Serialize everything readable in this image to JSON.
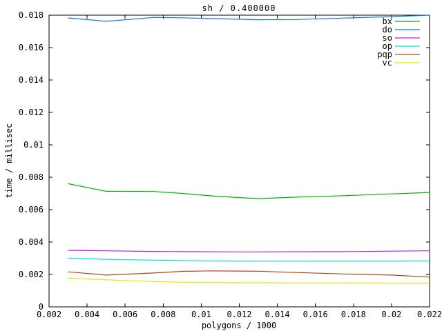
{
  "window": {
    "background": "#ffffff",
    "axis_color": "#000000",
    "text_color": "#000000"
  },
  "chart_data": {
    "type": "line",
    "title": "sh / 0.400000",
    "xlabel": "polygons / 1000",
    "ylabel": "time / millisec",
    "xlim": [
      0.002,
      0.022
    ],
    "ylim": [
      0,
      0.018
    ],
    "grid": false,
    "legend_position": "top-right-inside",
    "axis_color": "#000000",
    "xticks": [
      {
        "v": 0.002,
        "label": "0.002"
      },
      {
        "v": 0.004,
        "label": "0.004"
      },
      {
        "v": 0.006,
        "label": "0.006"
      },
      {
        "v": 0.008,
        "label": "0.008"
      },
      {
        "v": 0.01,
        "label": "0.01"
      },
      {
        "v": 0.012,
        "label": "0.012"
      },
      {
        "v": 0.014,
        "label": "0.014"
      },
      {
        "v": 0.016,
        "label": "0.016"
      },
      {
        "v": 0.018,
        "label": "0.018"
      },
      {
        "v": 0.02,
        "label": "0.02"
      },
      {
        "v": 0.022,
        "label": "0.022"
      }
    ],
    "yticks": [
      {
        "v": 0,
        "label": "0"
      },
      {
        "v": 0.002,
        "label": "0.002"
      },
      {
        "v": 0.004,
        "label": "0.004"
      },
      {
        "v": 0.006,
        "label": "0.006"
      },
      {
        "v": 0.008,
        "label": "0.008"
      },
      {
        "v": 0.01,
        "label": "0.01"
      },
      {
        "v": 0.012,
        "label": "0.012"
      },
      {
        "v": 0.014,
        "label": "0.014"
      },
      {
        "v": 0.016,
        "label": "0.016"
      },
      {
        "v": 0.018,
        "label": "0.018"
      }
    ],
    "x": [
      0.003,
      0.005,
      0.0075,
      0.009,
      0.0105,
      0.012,
      0.013,
      0.015,
      0.0175,
      0.02,
      0.022
    ],
    "series": [
      {
        "name": "bx",
        "color": "#00b400",
        "values": [
          0.0076,
          0.00713,
          0.00712,
          0.007,
          0.00685,
          0.00674,
          0.00668,
          0.00677,
          0.00686,
          0.00697,
          0.00706
        ]
      },
      {
        "name": "do",
        "color": "#0a78e6",
        "values": [
          0.01783,
          0.01762,
          0.01786,
          0.01784,
          0.01779,
          0.01775,
          0.01772,
          0.01773,
          0.01782,
          0.01791,
          0.018
        ]
      },
      {
        "name": "so",
        "color": "#c31ee0",
        "values": [
          0.00349,
          0.00346,
          0.00342,
          0.00341,
          0.0034,
          0.00339,
          0.00339,
          0.0034,
          0.00341,
          0.00344,
          0.00346
        ]
      },
      {
        "name": "op",
        "color": "#00e0e0",
        "values": [
          0.00301,
          0.00293,
          0.00288,
          0.00286,
          0.00284,
          0.00283,
          0.00282,
          0.00282,
          0.00283,
          0.00283,
          0.00284
        ]
      },
      {
        "name": "pqp",
        "color": "#b44314",
        "values": [
          0.00216,
          0.00196,
          0.00209,
          0.00219,
          0.00222,
          0.00221,
          0.0022,
          0.00212,
          0.00203,
          0.00196,
          0.00184
        ]
      },
      {
        "name": "vc",
        "color": "#e6e600",
        "values": [
          0.00177,
          0.00167,
          0.00156,
          0.00152,
          0.0015,
          0.00149,
          0.00149,
          0.00148,
          0.00148,
          0.00147,
          0.00147
        ]
      }
    ]
  }
}
